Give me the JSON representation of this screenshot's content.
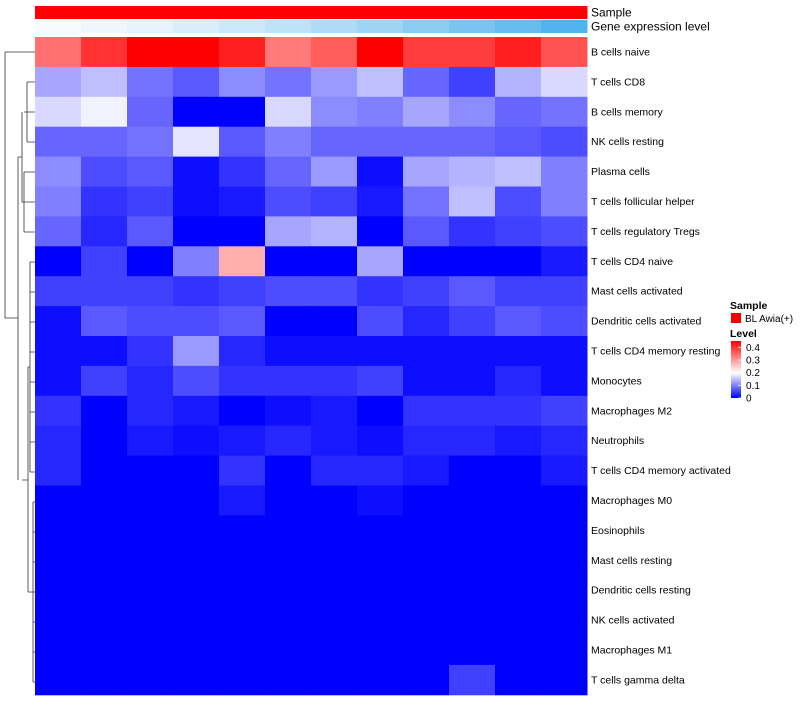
{
  "chart_data": {
    "type": "heatmap",
    "annotation_rows": [
      {
        "label": "Sample",
        "colors": [
          "#ff0000",
          "#ff0000",
          "#ff0000",
          "#ff0000",
          "#ff0000",
          "#ff0000",
          "#ff0000",
          "#ff0000",
          "#ff0000",
          "#ff0000",
          "#ff0000",
          "#ff0000"
        ]
      },
      {
        "label": "Gene expression level",
        "colors": [
          "#f7fbfe",
          "#eef7fd",
          "#e5f3fc",
          "#d8eefb",
          "#cbe9fa",
          "#bde3f9",
          "#aedcf7",
          "#9ed5f5",
          "#8cccf3",
          "#7ac4f1",
          "#66bbef",
          "#50b2ee"
        ]
      }
    ],
    "rows": [
      "B cells naive",
      "T cells CD8",
      "B cells memory",
      "NK cells resting",
      "Plasma cells",
      "T cells follicular helper",
      "T cells regulatory  Tregs",
      "T cells CD4 naive",
      "Mast cells activated",
      "Dendritic cells activated",
      "T cells CD4 memory resting",
      "Monocytes",
      "Macrophages M2",
      "Neutrophils",
      "T cells CD4 memory activated",
      "Macrophages M0",
      "Eosinophils",
      "Mast cells resting",
      "Dendritic cells resting",
      "NK cells activated",
      "Macrophages M1",
      "T cells gamma delta"
    ],
    "values": [
      [
        0.34,
        0.4,
        0.45,
        0.45,
        0.42,
        0.33,
        0.36,
        0.45,
        0.39,
        0.39,
        0.42,
        0.37
      ],
      [
        0.13,
        0.15,
        0.09,
        0.07,
        0.11,
        0.09,
        0.12,
        0.15,
        0.08,
        0.05,
        0.14,
        0.17
      ],
      [
        0.17,
        0.19,
        0.08,
        0.0,
        0.0,
        0.17,
        0.11,
        0.1,
        0.13,
        0.11,
        0.08,
        0.09
      ],
      [
        0.08,
        0.08,
        0.09,
        0.18,
        0.07,
        0.1,
        0.08,
        0.08,
        0.08,
        0.08,
        0.07,
        0.06
      ],
      [
        0.11,
        0.06,
        0.07,
        0.01,
        0.04,
        0.08,
        0.12,
        0.01,
        0.13,
        0.14,
        0.15,
        0.1
      ],
      [
        0.1,
        0.04,
        0.05,
        0.01,
        0.02,
        0.06,
        0.05,
        0.02,
        0.09,
        0.15,
        0.06,
        0.1
      ],
      [
        0.08,
        0.03,
        0.07,
        0.0,
        0.0,
        0.13,
        0.14,
        0.0,
        0.07,
        0.04,
        0.05,
        0.06
      ],
      [
        0.0,
        0.05,
        0.0,
        0.1,
        0.28,
        0.0,
        0.0,
        0.13,
        0.0,
        0.0,
        0.0,
        0.02
      ],
      [
        0.05,
        0.05,
        0.05,
        0.04,
        0.05,
        0.06,
        0.06,
        0.04,
        0.05,
        0.07,
        0.05,
        0.05
      ],
      [
        0.01,
        0.07,
        0.06,
        0.06,
        0.07,
        0.0,
        0.0,
        0.06,
        0.03,
        0.05,
        0.07,
        0.06
      ],
      [
        0.01,
        0.01,
        0.04,
        0.12,
        0.03,
        0.01,
        0.01,
        0.01,
        0.01,
        0.01,
        0.01,
        0.01
      ],
      [
        0.01,
        0.05,
        0.03,
        0.06,
        0.04,
        0.04,
        0.04,
        0.05,
        0.01,
        0.01,
        0.03,
        0.01
      ],
      [
        0.04,
        0.0,
        0.03,
        0.02,
        0.0,
        0.01,
        0.02,
        0.0,
        0.04,
        0.04,
        0.04,
        0.05
      ],
      [
        0.03,
        0.0,
        0.02,
        0.01,
        0.02,
        0.03,
        0.02,
        0.01,
        0.03,
        0.03,
        0.02,
        0.03
      ],
      [
        0.03,
        0.0,
        0.0,
        0.0,
        0.04,
        0.0,
        0.03,
        0.03,
        0.02,
        0.0,
        0.0,
        0.02
      ],
      [
        0.0,
        0.0,
        0.0,
        0.0,
        0.02,
        0.0,
        0.0,
        0.01,
        0.0,
        0.0,
        0.0,
        0.0
      ],
      [
        0.0,
        0.0,
        0.0,
        0.0,
        0.0,
        0.0,
        0.0,
        0.0,
        0.0,
        0.0,
        0.0,
        0.0
      ],
      [
        0.0,
        0.0,
        0.0,
        0.0,
        0.0,
        0.0,
        0.0,
        0.0,
        0.0,
        0.0,
        0.0,
        0.0
      ],
      [
        0.0,
        0.0,
        0.0,
        0.0,
        0.0,
        0.0,
        0.0,
        0.0,
        0.0,
        0.0,
        0.0,
        0.0
      ],
      [
        0.0,
        0.0,
        0.0,
        0.0,
        0.0,
        0.0,
        0.0,
        0.0,
        0.0,
        0.0,
        0.0,
        0.0
      ],
      [
        0.0,
        0.0,
        0.0,
        0.0,
        0.0,
        0.0,
        0.0,
        0.0,
        0.0,
        0.0,
        0.0,
        0.0
      ],
      [
        0.0,
        0.0,
        0.0,
        0.0,
        0.0,
        0.0,
        0.0,
        0.0,
        0.0,
        0.05,
        0.0,
        0.0
      ]
    ],
    "color_scale": {
      "min": 0,
      "mid": 0.2,
      "max": 0.45,
      "low": "#0000ff",
      "mid_color": "#ffffff",
      "high": "#ff0000"
    },
    "legend": {
      "position": "right",
      "sample_title": "Sample",
      "sample_entry": "BL Awia(+)",
      "sample_color": "#ff0000",
      "level_title": "Level",
      "level_ticks": [
        "0.4",
        "0.3",
        "0.2",
        "0.1",
        "0"
      ]
    },
    "dendrogram": "left"
  }
}
